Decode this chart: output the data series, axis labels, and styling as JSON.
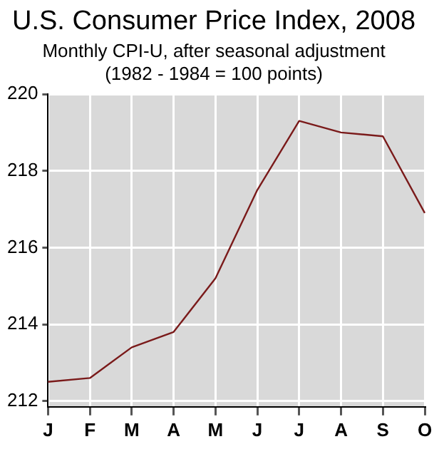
{
  "chart_data": {
    "type": "line",
    "title": "U.S. Consumer Price Index, 2008",
    "subtitle": "Monthly CPI-U, after seasonal adjustment\n(1982 - 1984 = 100 points)",
    "categories": [
      "J",
      "F",
      "M",
      "A",
      "M",
      "J",
      "J",
      "A",
      "S",
      "O"
    ],
    "series": [
      {
        "color": "#7a1a1a",
        "values": [
          212.5,
          212.6,
          213.4,
          213.8,
          215.2,
          217.5,
          219.3,
          219.0,
          218.9,
          216.9
        ]
      }
    ],
    "ylim": [
      211.85,
      220
    ],
    "yticks": [
      212,
      214,
      216,
      218,
      220
    ],
    "grid": true,
    "legend": false,
    "marker": "none",
    "line_style": "solid"
  }
}
